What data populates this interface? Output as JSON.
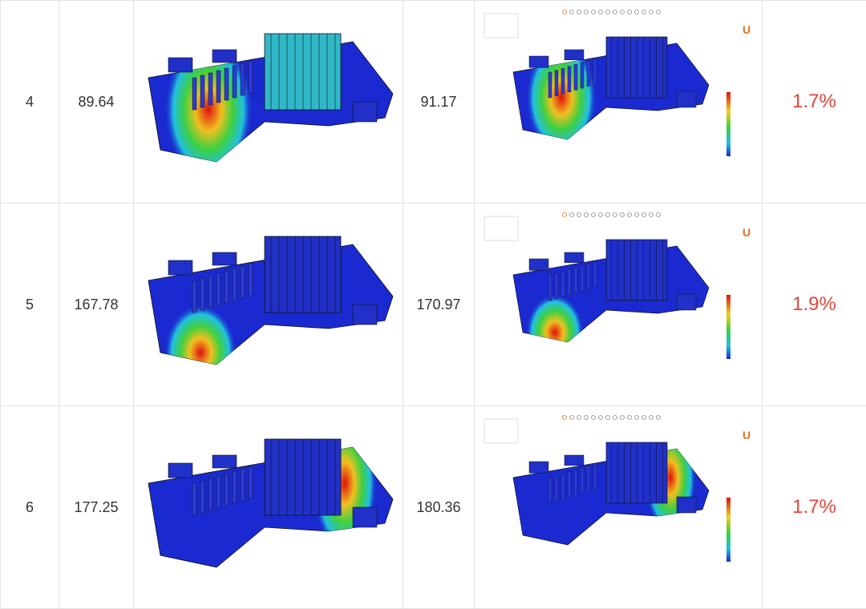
{
  "table": {
    "rows": [
      [
        "4",
        "89.64",
        "91.17",
        "1.7%"
      ],
      [
        "5",
        "167.78",
        "170.97",
        "1.9%"
      ],
      [
        "6",
        "177.25",
        "180.36",
        "1.7%"
      ]
    ]
  }
}
